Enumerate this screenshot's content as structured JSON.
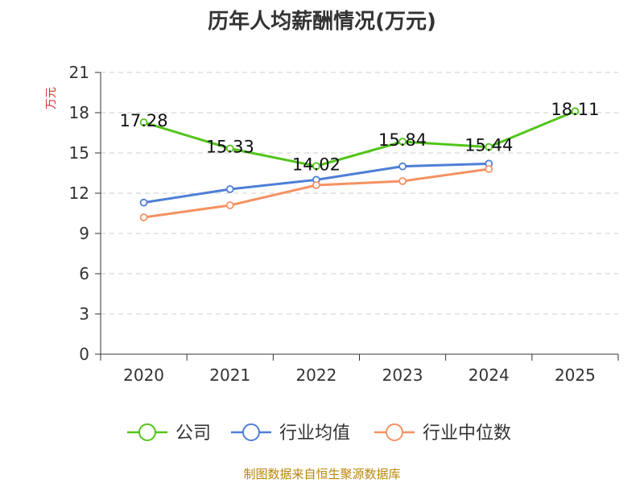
{
  "chart_data": {
    "type": "line",
    "title": "历年人均薪酬情况(万元)",
    "ylabel": "万元",
    "xlabel": "",
    "categories": [
      "2020",
      "2021",
      "2022",
      "2023",
      "2024",
      "2025"
    ],
    "ylim": [
      0,
      21
    ],
    "yticks": [
      0,
      3,
      6,
      9,
      12,
      15,
      18,
      21
    ],
    "grid": true,
    "legend_position": "bottom",
    "series": [
      {
        "name": "公司",
        "color": "#52c41a",
        "values": [
          17.28,
          15.33,
          14.02,
          15.84,
          15.44,
          18.11
        ],
        "labels": [
          "17.28",
          "15.33",
          "14.02",
          "15.84",
          "15.44",
          "18.11"
        ]
      },
      {
        "name": "行业均值",
        "color": "#4e7fd6",
        "values": [
          11.3,
          12.3,
          13.0,
          14.0,
          14.2,
          null
        ]
      },
      {
        "name": "行业中位数",
        "color": "#f59262",
        "values": [
          10.2,
          11.1,
          12.6,
          12.9,
          13.8,
          null
        ]
      }
    ]
  },
  "footer": {
    "source": "制图数据来自恒生聚源数据库"
  }
}
